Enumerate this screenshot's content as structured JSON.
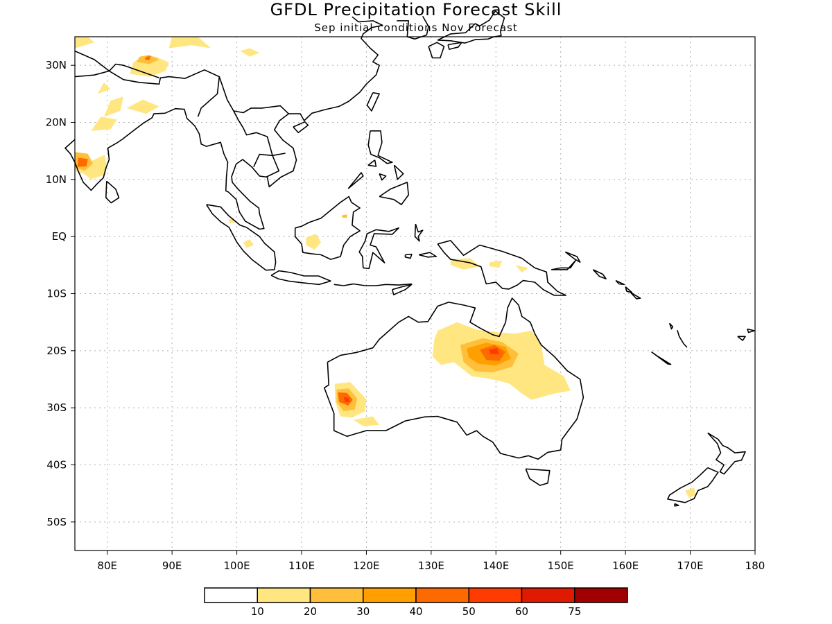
{
  "title": "GFDL Precipitation Forecast Skill",
  "subtitle": "Sep initial conditions  Nov Forecast",
  "map": {
    "lon_range": [
      75,
      180
    ],
    "lat_range": [
      -55,
      35
    ],
    "lon_ticks": [
      {
        "value": 80,
        "label": "80E"
      },
      {
        "value": 90,
        "label": "90E"
      },
      {
        "value": 100,
        "label": "100E"
      },
      {
        "value": 110,
        "label": "110E"
      },
      {
        "value": 120,
        "label": "120E"
      },
      {
        "value": 130,
        "label": "130E"
      },
      {
        "value": 140,
        "label": "140E"
      },
      {
        "value": 150,
        "label": "150E"
      },
      {
        "value": 160,
        "label": "160E"
      },
      {
        "value": 170,
        "label": "170E"
      },
      {
        "value": 180,
        "label": "180"
      }
    ],
    "lat_ticks": [
      {
        "value": 30,
        "label": "30N"
      },
      {
        "value": 20,
        "label": "20N"
      },
      {
        "value": 10,
        "label": "10N"
      },
      {
        "value": 0,
        "label": "EQ"
      },
      {
        "value": -10,
        "label": "10S"
      },
      {
        "value": -20,
        "label": "20S"
      },
      {
        "value": -30,
        "label": "30S"
      },
      {
        "value": -40,
        "label": "40S"
      },
      {
        "value": -50,
        "label": "50S"
      }
    ],
    "grid": true
  },
  "colorbar": {
    "colors": [
      "#ffffff",
      "#ffe680",
      "#ffbf3a",
      "#ffa000",
      "#ff6a00",
      "#ff3b00",
      "#e01a00",
      "#a00000"
    ],
    "labels": [
      "10",
      "20",
      "30",
      "40",
      "50",
      "60",
      "75"
    ]
  }
}
